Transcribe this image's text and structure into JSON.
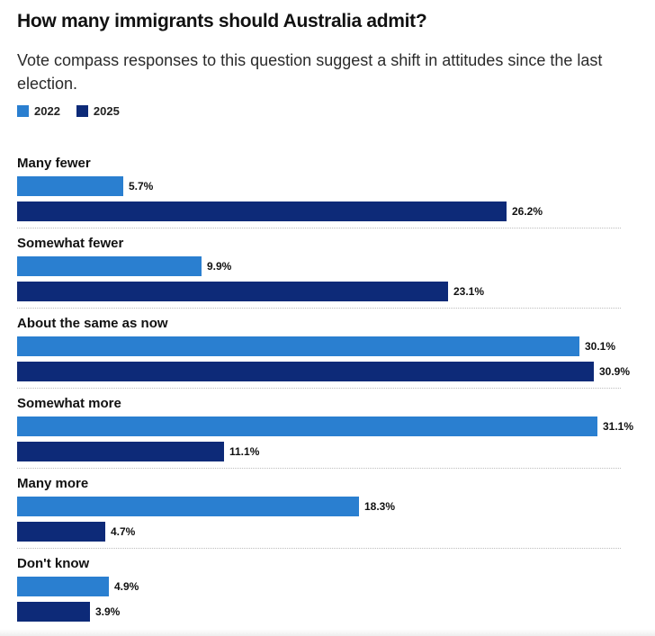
{
  "title": "How many immigrants should Australia admit?",
  "subtitle": "Vote compass responses to this question suggest a shift in attitudes since the last election.",
  "colors": {
    "s2022": "#2a7fd0",
    "s2025": "#0d2a78"
  },
  "chart_data": {
    "type": "bar",
    "orientation": "horizontal",
    "categories": [
      "Many fewer",
      "Somewhat fewer",
      "About the same as now",
      "Somewhat more",
      "Many more",
      "Don't know"
    ],
    "series": [
      {
        "name": "2022",
        "values": [
          5.7,
          9.9,
          30.1,
          31.1,
          18.3,
          4.9
        ],
        "labels": [
          "5.7%",
          "9.9%",
          "30.1%",
          "31.1%",
          "18.3%",
          "4.9%"
        ]
      },
      {
        "name": "2025",
        "values": [
          26.2,
          23.1,
          30.9,
          11.1,
          4.7,
          3.9
        ],
        "labels": [
          "26.2%",
          "23.1%",
          "30.9%",
          "11.1%",
          "4.7%",
          "3.9%"
        ]
      }
    ],
    "xlim": [
      0,
      32
    ],
    "legend": "top-left",
    "grid": false
  }
}
